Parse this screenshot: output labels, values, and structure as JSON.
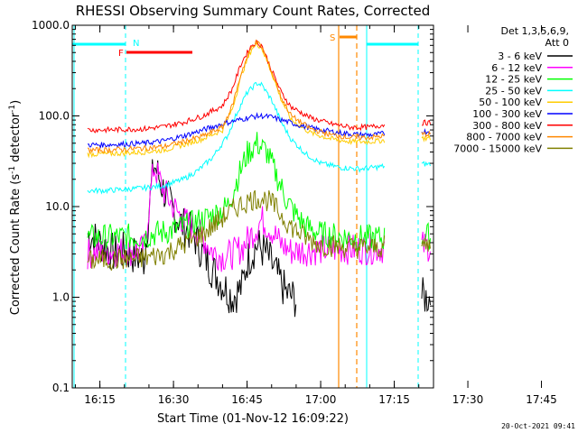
{
  "chart_data": {
    "type": "line",
    "title": "RHESSI Observing Summary Count Rates, Corrected",
    "xlabel": "Start Time (01-Nov-12 16:09:22)",
    "ylabel_main": "Corrected Count Rate (s",
    "ylabel_sup1": "-1",
    "ylabel_mid": " detector",
    "ylabel_sup2": "-1",
    "ylabel_end": ")",
    "yscale": "log",
    "ylim": [
      0.1,
      1000
    ],
    "xlim_min": [
      9.37,
      83.0
    ],
    "x_ticks": [
      {
        "label": "16:15",
        "min": 15
      },
      {
        "label": "16:30",
        "min": 30
      },
      {
        "label": "16:45",
        "min": 45
      },
      {
        "label": "17:00",
        "min": 60
      },
      {
        "label": "17:15",
        "min": 75
      },
      {
        "label": "17:30",
        "min": 90
      },
      {
        "label": "17:45",
        "min": 105
      }
    ],
    "y_ticks": [
      {
        "label": "0.1",
        "value": 0.1
      },
      {
        "label": "1.0",
        "value": 1
      },
      {
        "label": "10.0",
        "value": 10
      },
      {
        "label": "100.0",
        "value": 100
      },
      {
        "label": "1000.0",
        "value": 1000
      }
    ],
    "legend_header_1": "Det 1,3,5,6,9,",
    "legend_header_2": "Att 0",
    "legend_placement": "right",
    "series": [
      {
        "name": "3 - 6 keV",
        "color": "#000000",
        "points": [
          [
            12.5,
            5
          ],
          [
            15,
            4
          ],
          [
            18,
            3
          ],
          [
            20,
            3.2
          ],
          [
            24,
            2.6
          ],
          [
            26,
            30
          ],
          [
            28,
            15
          ],
          [
            30,
            9
          ],
          [
            32,
            6
          ],
          [
            34,
            5
          ],
          [
            36,
            3
          ],
          [
            38,
            2
          ],
          [
            40,
            1.4
          ],
          [
            42,
            1
          ],
          [
            44,
            1.3
          ],
          [
            45,
            2.5
          ],
          [
            47,
            3.8
          ],
          [
            49,
            3
          ],
          [
            51,
            1.8
          ],
          [
            53,
            1.1
          ],
          [
            55,
            0.95
          ]
        ]
      },
      {
        "name": "6 - 12 keV",
        "color": "#ff00ff",
        "points": [
          [
            12.5,
            3
          ],
          [
            15,
            3.2
          ],
          [
            20,
            3.2
          ],
          [
            24,
            3.3
          ],
          [
            26,
            28
          ],
          [
            28,
            15
          ],
          [
            30,
            10
          ],
          [
            32,
            7
          ],
          [
            34,
            6
          ],
          [
            36,
            4.5
          ],
          [
            38,
            3.2
          ],
          [
            40,
            2.8
          ],
          [
            42,
            3
          ],
          [
            44,
            3.5
          ],
          [
            46,
            5
          ],
          [
            48,
            7.2
          ],
          [
            50,
            5.5
          ],
          [
            52,
            3.8
          ],
          [
            54,
            3.2
          ],
          [
            58,
            3.3
          ],
          [
            64,
            3.4
          ],
          [
            70,
            3.4
          ],
          [
            73,
            3.5
          ]
        ]
      },
      {
        "name": "12 - 25 keV",
        "color": "#00ff00",
        "points": [
          [
            12.5,
            4.5
          ],
          [
            16,
            4.6
          ],
          [
            20,
            4.6
          ],
          [
            24,
            4.7
          ],
          [
            26,
            5
          ],
          [
            30,
            5.5
          ],
          [
            34,
            6.5
          ],
          [
            38,
            8
          ],
          [
            41,
            10
          ],
          [
            43,
            20
          ],
          [
            45,
            38
          ],
          [
            47,
            50
          ],
          [
            49,
            40
          ],
          [
            51,
            22
          ],
          [
            53,
            12
          ],
          [
            55,
            8
          ],
          [
            57,
            6
          ],
          [
            60,
            5
          ],
          [
            65,
            4.6
          ],
          [
            70,
            4.5
          ],
          [
            73,
            4.5
          ]
        ]
      },
      {
        "name": "25 - 50 keV",
        "color": "#00ffff",
        "points": [
          [
            12.5,
            15
          ],
          [
            16,
            15
          ],
          [
            20,
            15.5
          ],
          [
            24,
            16
          ],
          [
            28,
            17
          ],
          [
            32,
            20
          ],
          [
            35,
            25
          ],
          [
            38,
            35
          ],
          [
            41,
            60
          ],
          [
            43,
            110
          ],
          [
            45,
            180
          ],
          [
            47,
            230
          ],
          [
            48,
            220
          ],
          [
            50,
            150
          ],
          [
            52,
            85
          ],
          [
            54,
            55
          ],
          [
            57,
            38
          ],
          [
            60,
            30
          ],
          [
            64,
            27
          ],
          [
            68,
            26
          ],
          [
            71,
            27
          ],
          [
            73,
            28
          ]
        ]
      },
      {
        "name": "50 - 100 keV",
        "color": "#ffcc00",
        "points": [
          [
            12.5,
            38
          ],
          [
            16,
            38
          ],
          [
            20,
            39
          ],
          [
            24,
            40
          ],
          [
            28,
            42
          ],
          [
            32,
            48
          ],
          [
            36,
            56
          ],
          [
            40,
            70
          ],
          [
            42,
            120
          ],
          [
            44,
            300
          ],
          [
            46,
            560
          ],
          [
            47,
            630
          ],
          [
            48,
            560
          ],
          [
            50,
            300
          ],
          [
            52,
            150
          ],
          [
            54,
            90
          ],
          [
            58,
            65
          ],
          [
            62,
            56
          ],
          [
            66,
            52
          ],
          [
            70,
            52
          ],
          [
            73,
            54
          ]
        ]
      },
      {
        "name": "100 - 300 keV",
        "color": "#0000ff",
        "points": [
          [
            12.5,
            48
          ],
          [
            16,
            48
          ],
          [
            20,
            49
          ],
          [
            24,
            50
          ],
          [
            28,
            53
          ],
          [
            32,
            60
          ],
          [
            36,
            70
          ],
          [
            40,
            82
          ],
          [
            44,
            92
          ],
          [
            46,
            98
          ],
          [
            48,
            100
          ],
          [
            50,
            97
          ],
          [
            52,
            90
          ],
          [
            56,
            78
          ],
          [
            60,
            70
          ],
          [
            64,
            65
          ],
          [
            68,
            62
          ],
          [
            71,
            62
          ],
          [
            73,
            64
          ]
        ]
      },
      {
        "name": "300 - 800 keV",
        "color": "#ff0000",
        "points": [
          [
            12.5,
            70
          ],
          [
            16,
            70
          ],
          [
            20,
            71
          ],
          [
            24,
            72
          ],
          [
            28,
            76
          ],
          [
            32,
            85
          ],
          [
            36,
            100
          ],
          [
            40,
            130
          ],
          [
            42,
            200
          ],
          [
            44,
            400
          ],
          [
            46,
            610
          ],
          [
            47,
            650
          ],
          [
            48,
            600
          ],
          [
            50,
            320
          ],
          [
            52,
            180
          ],
          [
            54,
            125
          ],
          [
            58,
            95
          ],
          [
            62,
            82
          ],
          [
            66,
            75
          ],
          [
            70,
            75
          ],
          [
            73,
            80
          ]
        ]
      },
      {
        "name": "800 - 7000 keV",
        "color": "#ff8800",
        "points": [
          [
            12.5,
            42
          ],
          [
            16,
            42
          ],
          [
            20,
            43
          ],
          [
            24,
            44
          ],
          [
            28,
            46
          ],
          [
            32,
            52
          ],
          [
            36,
            60
          ],
          [
            40,
            75
          ],
          [
            42,
            130
          ],
          [
            44,
            320
          ],
          [
            46,
            590
          ],
          [
            47,
            650
          ],
          [
            48,
            580
          ],
          [
            50,
            310
          ],
          [
            52,
            160
          ],
          [
            54,
            100
          ],
          [
            58,
            72
          ],
          [
            62,
            62
          ],
          [
            66,
            58
          ],
          [
            70,
            58
          ],
          [
            73,
            60
          ]
        ]
      },
      {
        "name": "7000 - 15000 keV",
        "color": "#808000",
        "points": [
          [
            12.5,
            2.5
          ],
          [
            16,
            2.6
          ],
          [
            20,
            2.6
          ],
          [
            24,
            2.7
          ],
          [
            28,
            3
          ],
          [
            32,
            3.8
          ],
          [
            36,
            5
          ],
          [
            40,
            7.5
          ],
          [
            43,
            10
          ],
          [
            46,
            12
          ],
          [
            48,
            12.5
          ],
          [
            50,
            11
          ],
          [
            52,
            8
          ],
          [
            54,
            6
          ],
          [
            57,
            4.5
          ],
          [
            60,
            3.8
          ],
          [
            64,
            3.6
          ],
          [
            68,
            3.5
          ],
          [
            71,
            3.5
          ],
          [
            73,
            3.6
          ]
        ]
      }
    ],
    "right_segment": {
      "x": [
        80.6,
        82.5
      ],
      "note": "data resumes after gap"
    },
    "annotations": [
      {
        "label": "N",
        "color": "#00ffff"
      },
      {
        "label": "F",
        "color": "#ff0000"
      },
      {
        "label": "S",
        "color": "#ff8800"
      }
    ]
  },
  "footer": {
    "timestamp": "20-Oct-2021 09:41"
  }
}
